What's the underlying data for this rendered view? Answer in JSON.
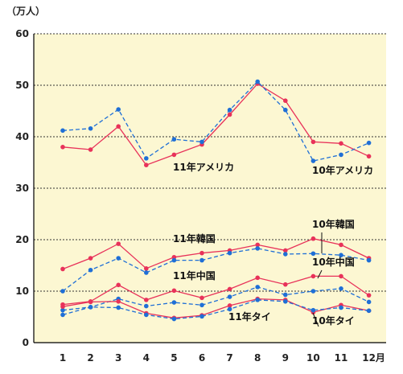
{
  "chart_data": {
    "type": "line",
    "unit_label": "（万人）",
    "month_suffix": "月",
    "ylim": [
      0,
      60
    ],
    "yticks": [
      0,
      10,
      20,
      30,
      40,
      50,
      60
    ],
    "categories": [
      "1",
      "2",
      "3",
      "4",
      "5",
      "6",
      "7",
      "8",
      "9",
      "10",
      "11",
      "12"
    ],
    "grid": true,
    "colors": {
      "year11": "#e8325a",
      "year10": "#1f6fd6",
      "plot_bg": "#fcf7d2"
    },
    "series": [
      {
        "name": "11年アメリカ",
        "year": "11",
        "values": [
          38,
          37.5,
          42,
          34.5,
          36.5,
          38.5,
          44.3,
          50.3,
          47,
          39,
          38.7,
          36.2
        ]
      },
      {
        "name": "10年アメリカ",
        "year": "10",
        "values": [
          41.2,
          41.6,
          45.3,
          35.8,
          39.5,
          39,
          45.2,
          50.7,
          45.2,
          35.3,
          36.5,
          38.8
        ]
      },
      {
        "name": "11年韓国",
        "year": "11",
        "values": [
          14.3,
          16.4,
          19.2,
          14.4,
          16.6,
          17.4,
          17.9,
          19,
          17.9,
          20.2,
          19,
          16.4
        ]
      },
      {
        "name": "10年韓国",
        "year": "10",
        "values": [
          10,
          14.1,
          16.4,
          13.6,
          16,
          16,
          17.4,
          18.3,
          17.2,
          17.3,
          17,
          16
        ]
      },
      {
        "name": "11年中国",
        "year": "11",
        "values": [
          7.4,
          8,
          11.2,
          8.3,
          10.1,
          8.7,
          10.4,
          12.6,
          11.3,
          12.9,
          12.9,
          9.2
        ]
      },
      {
        "name": "10年中国",
        "year": "10",
        "values": [
          6.3,
          6.9,
          8.5,
          7.1,
          7.8,
          7.3,
          8.9,
          10.8,
          9.3,
          10,
          10.5,
          7.9
        ]
      },
      {
        "name": "11年タイ",
        "year": "11",
        "values": [
          7,
          7.9,
          8,
          5.7,
          4.8,
          5.3,
          7.2,
          8.5,
          8.3,
          5.9,
          7.3,
          6.2
        ]
      },
      {
        "name": "10年タイ",
        "year": "10",
        "values": [
          5.4,
          6.9,
          6.8,
          5.4,
          4.6,
          5.1,
          6.5,
          8.3,
          8,
          6.3,
          6.8,
          6.2
        ]
      }
    ]
  }
}
